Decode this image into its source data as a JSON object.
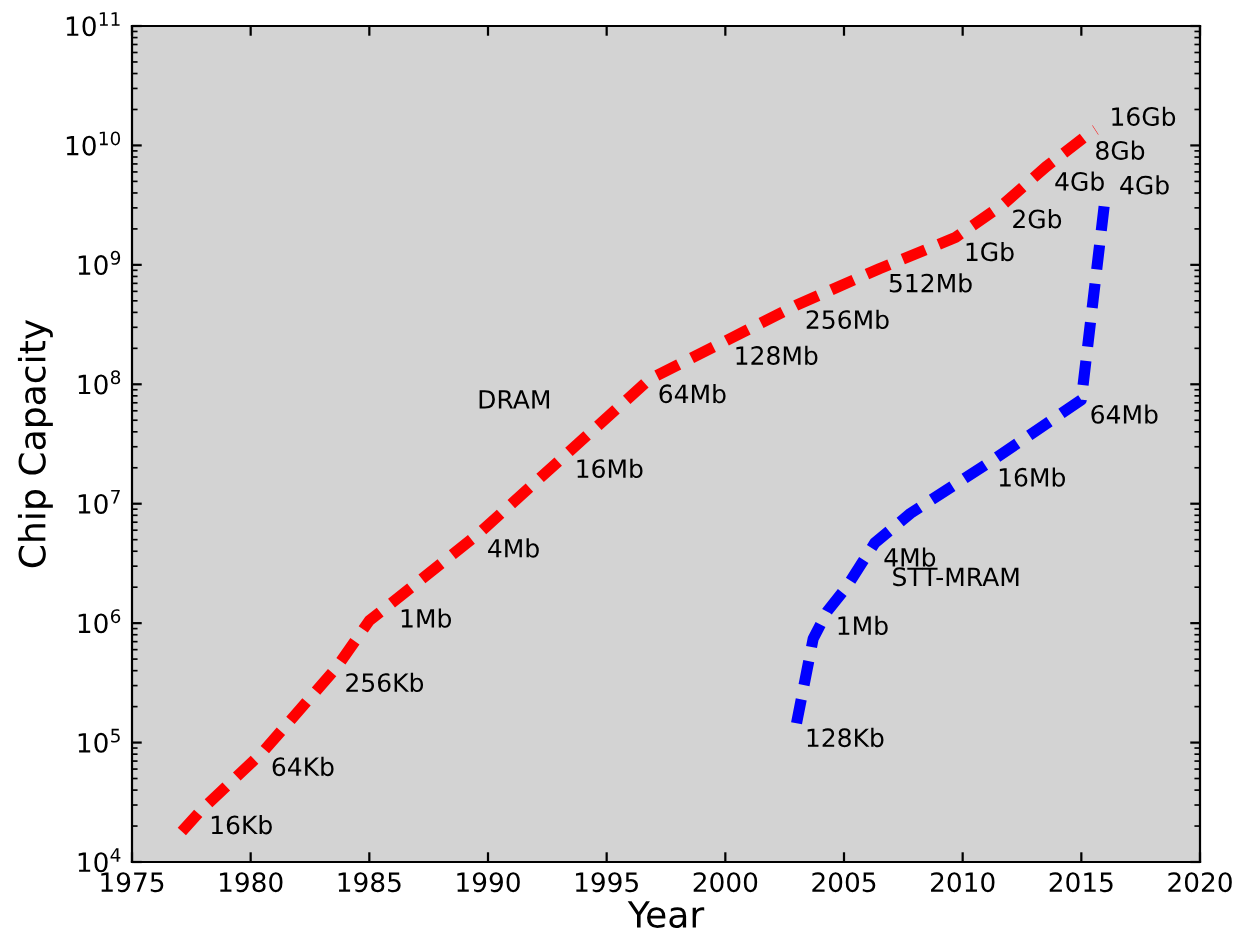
{
  "chart_data": {
    "type": "line",
    "xlabel": "Year",
    "ylabel": "Chip Capacity",
    "log": "y",
    "grid": false,
    "legend": false,
    "line_style": "dashed",
    "marker": "none",
    "xlim": [
      1975,
      2020
    ],
    "xticks": [
      1975,
      1980,
      1985,
      1990,
      1995,
      2000,
      2005,
      2010,
      2015,
      2020
    ],
    "ylim": [
      10000,
      100000000000
    ],
    "yticks": [
      {
        "value": 10000,
        "label": "10$^{4}$"
      },
      {
        "value": 100000,
        "label": "10$^{5}$"
      },
      {
        "value": 1000000,
        "label": "10$^{6}$"
      },
      {
        "value": 10000000,
        "label": "10$^{7}$"
      },
      {
        "value": 100000000,
        "label": "10$^{8}$"
      },
      {
        "value": 1000000000,
        "label": "10$^{9}$"
      },
      {
        "value": 10000000000,
        "label": "10$^{10}$"
      },
      {
        "value": 100000000000,
        "label": "10$^{11}$"
      }
    ],
    "series": [
      {
        "name": "DRAM",
        "color": "#ff0000",
        "x": [
          1977.1,
          1977.9,
          1980.5,
          1983.6,
          1985.0,
          1985.9,
          1989.6,
          1993.3,
          1996.8,
          2000.0,
          2003.0,
          2006.5,
          2009.7,
          2011.7,
          2013.5,
          2015.2,
          2015.6
        ],
        "values": [
          18000,
          27000,
          83000,
          420000,
          1050000,
          1450000,
          5600000,
          26000000,
          110000000,
          230000000,
          460000000,
          930000000,
          1700000000,
          3200000000,
          6600000000,
          12000000000,
          13500000000
        ]
      },
      {
        "name": "STT-MRAM",
        "color": "#0000ff",
        "x": [
          2003.0,
          2003.7,
          2004.3,
          2005.1,
          2006.3,
          2007.8,
          2011.1,
          2015.0,
          2016.0
        ],
        "values": [
          145000,
          740000,
          1260000,
          2000000,
          4700000,
          8300000,
          22000000,
          74000000,
          3600000000
        ]
      }
    ],
    "annotations": [
      {
        "text": "16Kb",
        "x": 1977.9,
        "y": 27000
      },
      {
        "text": "64Kb",
        "x": 1980.5,
        "y": 83000
      },
      {
        "text": "256Kb",
        "x": 1983.6,
        "y": 420000
      },
      {
        "text": "1Mb",
        "x": 1985.9,
        "y": 1450000
      },
      {
        "text": "4Mb",
        "x": 1989.6,
        "y": 5600000
      },
      {
        "text": "16Mb",
        "x": 1993.3,
        "y": 26000000
      },
      {
        "text": "64Mb",
        "x": 1996.8,
        "y": 110000000
      },
      {
        "text": "128Mb",
        "x": 2000.0,
        "y": 230000000
      },
      {
        "text": "256Mb",
        "x": 2003.0,
        "y": 460000000
      },
      {
        "text": "512Mb",
        "x": 2006.5,
        "y": 930000000
      },
      {
        "text": "1Gb",
        "x": 2009.7,
        "y": 1700000000
      },
      {
        "text": "2Gb",
        "x": 2011.7,
        "y": 3200000000
      },
      {
        "text": "4Gb",
        "x": 2013.5,
        "y": 6600000000
      },
      {
        "text": "8Gb",
        "x": 2015.2,
        "y": 12000000000
      },
      {
        "text": "16Gb",
        "x": 2015.6,
        "y": 13500000000
      },
      {
        "text": "4Gb",
        "x": 2016.0,
        "y": 3600000000
      },
      {
        "text": "64Mb",
        "x": 2015.0,
        "y": 74000000
      },
      {
        "text": "16Mb",
        "x": 2011.1,
        "y": 22000000
      },
      {
        "text": "4Mb",
        "x": 2006.3,
        "y": 4700000
      },
      {
        "text": "1Mb",
        "x": 2004.3,
        "y": 1260000
      },
      {
        "text": "128Kb",
        "x": 2003.0,
        "y": 145000
      }
    ]
  }
}
